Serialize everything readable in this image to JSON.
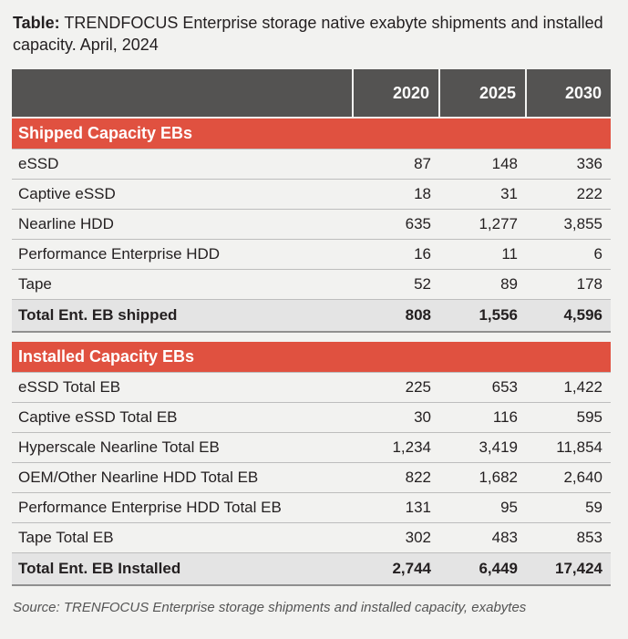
{
  "caption": {
    "lead": "Table:",
    "text": " TRENDFOCUS Enterprise storage native exabyte shipments and installed capacity. April, 2024"
  },
  "table": {
    "headers": [
      "",
      "2020",
      "2025",
      "2030"
    ],
    "sections": [
      {
        "title": "Shipped Capacity EBs",
        "rows": [
          [
            "eSSD",
            "87",
            "148",
            "336"
          ],
          [
            "Captive eSSD",
            "18",
            "31",
            "222"
          ],
          [
            "Nearline HDD",
            "635",
            "1,277",
            "3,855"
          ],
          [
            "Performance Enterprise HDD",
            "16",
            "11",
            "6"
          ],
          [
            "Tape",
            "52",
            "89",
            "178"
          ]
        ],
        "total": [
          "Total Ent. EB shipped",
          "808",
          "1,556",
          "4,596"
        ]
      },
      {
        "title": "Installed Capacity EBs",
        "rows": [
          [
            "eSSD Total EB",
            "225",
            "653",
            "1,422"
          ],
          [
            "Captive eSSD Total EB",
            "30",
            "116",
            "595"
          ],
          [
            "Hyperscale Nearline Total EB",
            "1,234",
            "3,419",
            "11,854"
          ],
          [
            "OEM/Other Nearline HDD Total EB",
            "822",
            "1,682",
            "2,640"
          ],
          [
            "Performance Enterprise HDD Total EB",
            "131",
            "95",
            "59"
          ],
          [
            "Tape Total EB",
            "302",
            "483",
            "853"
          ]
        ],
        "total": [
          "Total Ent. EB Installed",
          "2,744",
          "6,449",
          "17,424"
        ]
      }
    ]
  },
  "source": "Source: TRENFOCUS Enterprise storage shipments and installed capacity, exabytes",
  "colors": {
    "header_bg": "#545352",
    "section_bg": "#e05140",
    "total_bg": "#e4e4e4",
    "page_bg": "#f2f2f0"
  }
}
